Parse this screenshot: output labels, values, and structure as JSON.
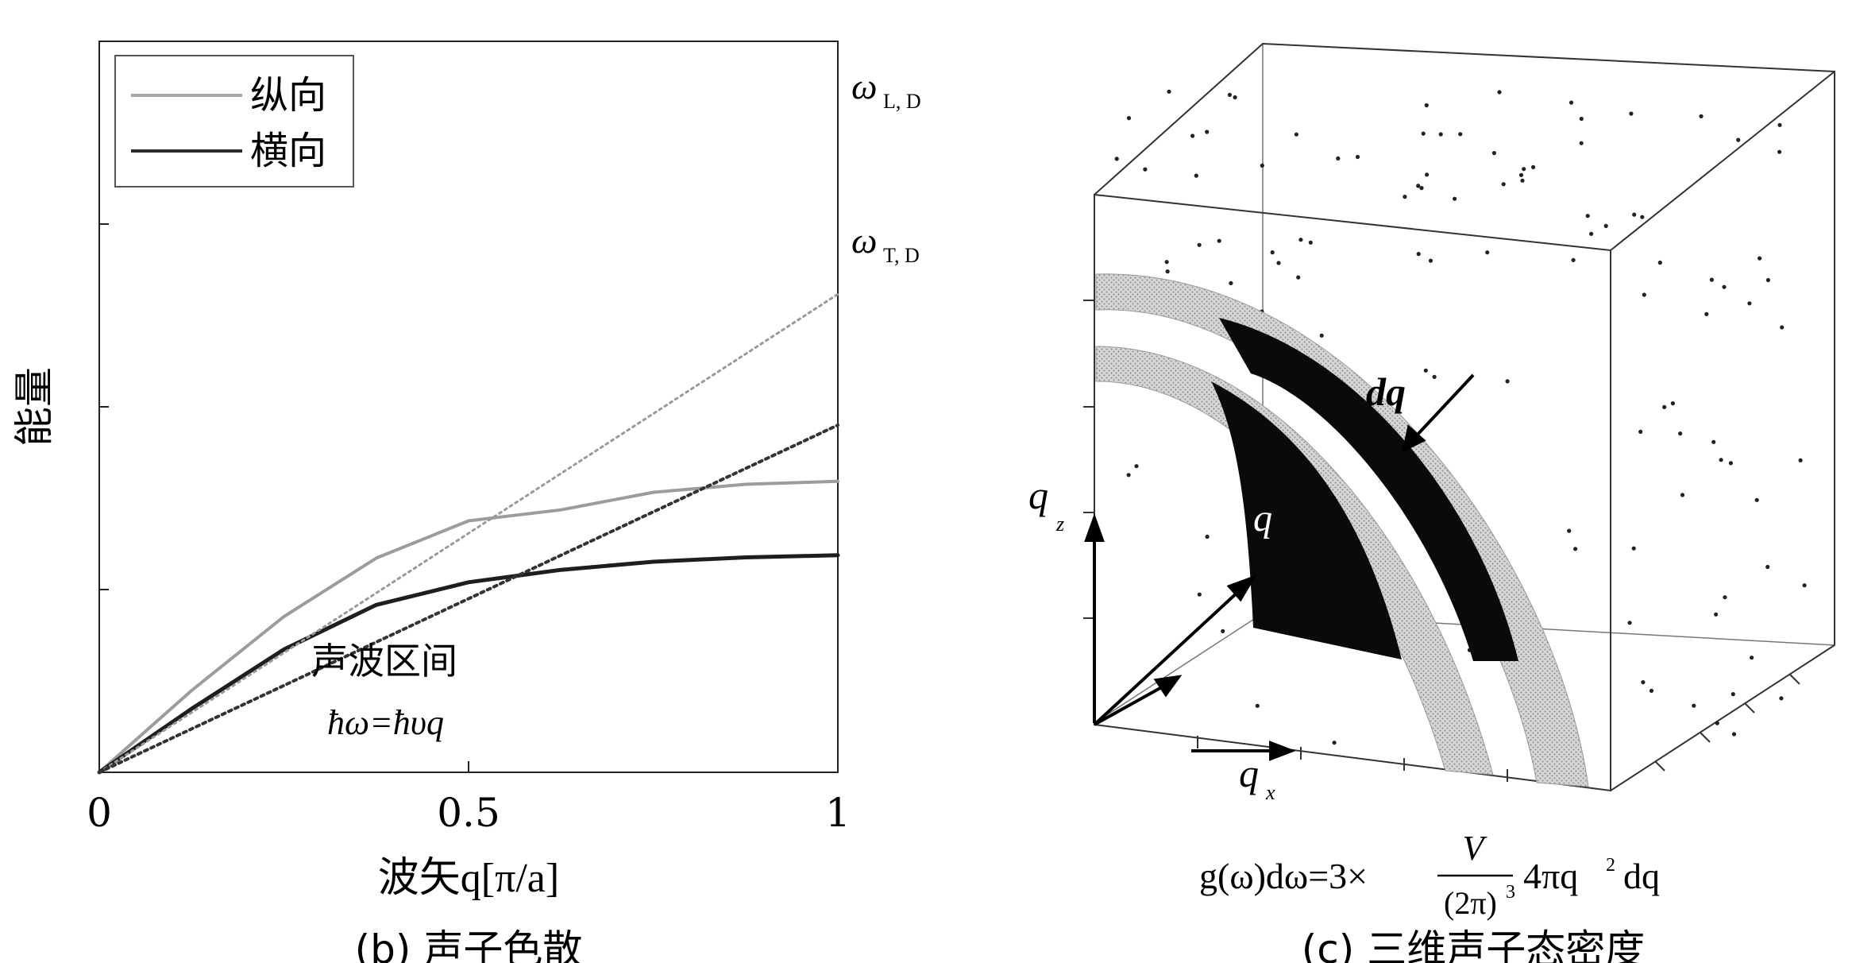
{
  "left_panel": {
    "legend": {
      "longitudinal": "纵向",
      "transverse": "横向"
    },
    "labels": {
      "omega": "ω",
      "omega_L_sub": "L, D",
      "omega_T_sub": "T, D",
      "acoustic_region": "声波区间",
      "relation": "ħω=ħυq"
    },
    "ylabel": "能量",
    "xlabel": "波矢q[π/a]",
    "caption": "(b) 声子色散"
  },
  "chart_data": {
    "type": "line",
    "xlabel": "波矢q[π/a]",
    "ylabel": "能量",
    "xlim": [
      0,
      1
    ],
    "x_ticks": [
      "0",
      "0.5",
      "1"
    ],
    "ylim": [
      0,
      1
    ],
    "legend_placement": "top-left",
    "series": [
      {
        "name": "纵向",
        "style": "light solid",
        "x": [
          0,
          0.125,
          0.25,
          0.375,
          0.5,
          0.625,
          0.75,
          0.875,
          1
        ],
        "y": [
          0,
          0.112,
          0.213,
          0.293,
          0.344,
          0.359,
          0.383,
          0.394,
          0.398
        ]
      },
      {
        "name": "横向",
        "style": "dark solid",
        "x": [
          0,
          0.125,
          0.25,
          0.375,
          0.5,
          0.625,
          0.75,
          0.875,
          1
        ],
        "y": [
          0,
          0.087,
          0.168,
          0.229,
          0.26,
          0.277,
          0.288,
          0.294,
          0.297
        ]
      },
      {
        "name": "",
        "style": "light dotted",
        "x": [
          0,
          1
        ],
        "y": [
          0,
          0.654
        ]
      },
      {
        "name": "",
        "style": "dark dotted",
        "x": [
          0,
          1
        ],
        "y": [
          0,
          0.475
        ]
      }
    ]
  },
  "right_panel": {
    "labels": {
      "dq": "dq",
      "q": "q",
      "qz": "q",
      "qz_sub": "z",
      "qx": "q",
      "qx_sub": "x"
    },
    "formula": {
      "lhs": "g(ω)dω=3×",
      "numerator": "V",
      "denominator": "(2π)",
      "denominator_exp": "3",
      "rhs": "4πq",
      "rhs_exp": "2",
      "rhs_tail": "dq"
    },
    "caption": "(c) 三维声子态密度"
  }
}
